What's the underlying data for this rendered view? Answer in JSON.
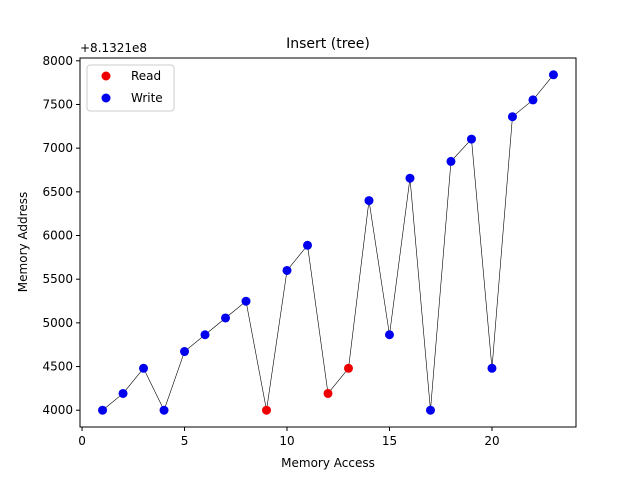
{
  "chart_data": {
    "type": "scatter",
    "title": "Insert (tree)",
    "xlabel": "Memory Access",
    "ylabel": "Memory Address",
    "offset_label": "+8.1321e8",
    "xlim": [
      -0.1,
      24.1
    ],
    "ylim": [
      3808,
      8032
    ],
    "xticks": [
      0,
      5,
      10,
      15,
      20
    ],
    "yticks": [
      4000,
      4500,
      5000,
      5500,
      6000,
      6500,
      7000,
      7500,
      8000
    ],
    "grid": false,
    "legend_position": "top-left",
    "line_color": "#000000",
    "series": [
      {
        "name": "Read",
        "color": "#ee0000",
        "points": [
          [
            9,
            4000
          ],
          [
            12,
            4192
          ],
          [
            13,
            4480
          ]
        ]
      },
      {
        "name": "Write",
        "color": "#0000ee",
        "points": [
          [
            1,
            4000
          ],
          [
            2,
            4192
          ],
          [
            3,
            4480
          ],
          [
            4,
            4000
          ],
          [
            5,
            4672
          ],
          [
            6,
            4864
          ],
          [
            7,
            5056
          ],
          [
            8,
            5248
          ],
          [
            10,
            5600
          ],
          [
            11,
            5888
          ],
          [
            14,
            6400
          ],
          [
            15,
            4864
          ],
          [
            16,
            6656
          ],
          [
            17,
            4000
          ],
          [
            18,
            6848
          ],
          [
            19,
            7104
          ],
          [
            20,
            4480
          ],
          [
            21,
            7360
          ],
          [
            22,
            7552
          ],
          [
            23,
            7840
          ]
        ]
      }
    ],
    "path": [
      [
        1,
        4000
      ],
      [
        2,
        4192
      ],
      [
        3,
        4480
      ],
      [
        4,
        4000
      ],
      [
        5,
        4672
      ],
      [
        6,
        4864
      ],
      [
        7,
        5056
      ],
      [
        8,
        5248
      ],
      [
        9,
        4000
      ],
      [
        10,
        5600
      ],
      [
        11,
        5888
      ],
      [
        12,
        4192
      ],
      [
        13,
        4480
      ],
      [
        14,
        6400
      ],
      [
        15,
        4864
      ],
      [
        16,
        6656
      ],
      [
        17,
        4000
      ],
      [
        18,
        6848
      ],
      [
        19,
        7104
      ],
      [
        20,
        4480
      ],
      [
        21,
        7360
      ],
      [
        22,
        7552
      ],
      [
        23,
        7840
      ]
    ]
  }
}
